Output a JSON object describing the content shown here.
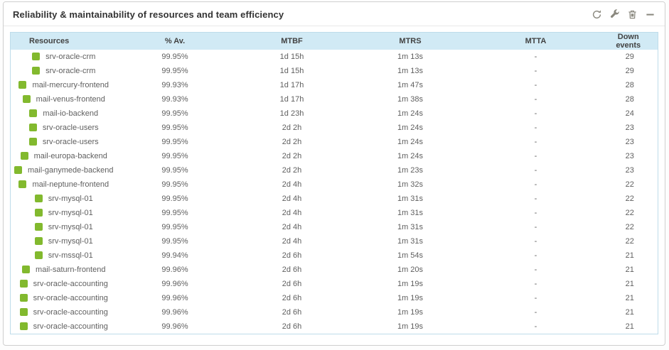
{
  "widget": {
    "title": "Reliability & maintainability of resources and team efficiency",
    "toolbar_icons": [
      "refresh",
      "wrench",
      "trash",
      "collapse"
    ]
  },
  "colors": {
    "status_ok": "#82B92E",
    "header_bg": "#d1eaf5",
    "table_border": "#bedcea",
    "icon_gray": "#8a887e"
  },
  "table": {
    "columns": [
      "Resources",
      "% Av.",
      "MTBF",
      "MTRS",
      "MTTA",
      "Down events"
    ],
    "rows": [
      {
        "resource": "srv-oracle-crm",
        "av": "99.95%",
        "mtbf": "1d 15h",
        "mtrs": "1m 13s",
        "mtta": "-",
        "down_events": "29"
      },
      {
        "resource": "srv-oracle-crm",
        "av": "99.95%",
        "mtbf": "1d 15h",
        "mtrs": "1m 13s",
        "mtta": "-",
        "down_events": "29"
      },
      {
        "resource": "mail-mercury-frontend",
        "av": "99.93%",
        "mtbf": "1d 17h",
        "mtrs": "1m 47s",
        "mtta": "-",
        "down_events": "28"
      },
      {
        "resource": "mail-venus-frontend",
        "av": "99.93%",
        "mtbf": "1d 17h",
        "mtrs": "1m 38s",
        "mtta": "-",
        "down_events": "28"
      },
      {
        "resource": "mail-io-backend",
        "av": "99.95%",
        "mtbf": "1d 23h",
        "mtrs": "1m 24s",
        "mtta": "-",
        "down_events": "24"
      },
      {
        "resource": "srv-oracle-users",
        "av": "99.95%",
        "mtbf": "2d 2h",
        "mtrs": "1m 24s",
        "mtta": "-",
        "down_events": "23"
      },
      {
        "resource": "srv-oracle-users",
        "av": "99.95%",
        "mtbf": "2d 2h",
        "mtrs": "1m 24s",
        "mtta": "-",
        "down_events": "23"
      },
      {
        "resource": "mail-europa-backend",
        "av": "99.95%",
        "mtbf": "2d 2h",
        "mtrs": "1m 24s",
        "mtta": "-",
        "down_events": "23"
      },
      {
        "resource": "mail-ganymede-backend",
        "av": "99.95%",
        "mtbf": "2d 2h",
        "mtrs": "1m 23s",
        "mtta": "-",
        "down_events": "23"
      },
      {
        "resource": "mail-neptune-frontend",
        "av": "99.95%",
        "mtbf": "2d 4h",
        "mtrs": "1m 32s",
        "mtta": "-",
        "down_events": "22"
      },
      {
        "resource": "srv-mysql-01",
        "av": "99.95%",
        "mtbf": "2d 4h",
        "mtrs": "1m 31s",
        "mtta": "-",
        "down_events": "22"
      },
      {
        "resource": "srv-mysql-01",
        "av": "99.95%",
        "mtbf": "2d 4h",
        "mtrs": "1m 31s",
        "mtta": "-",
        "down_events": "22"
      },
      {
        "resource": "srv-mysql-01",
        "av": "99.95%",
        "mtbf": "2d 4h",
        "mtrs": "1m 31s",
        "mtta": "-",
        "down_events": "22"
      },
      {
        "resource": "srv-mysql-01",
        "av": "99.95%",
        "mtbf": "2d 4h",
        "mtrs": "1m 31s",
        "mtta": "-",
        "down_events": "22"
      },
      {
        "resource": "srv-mssql-01",
        "av": "99.94%",
        "mtbf": "2d 6h",
        "mtrs": "1m 54s",
        "mtta": "-",
        "down_events": "21"
      },
      {
        "resource": "mail-saturn-frontend",
        "av": "99.96%",
        "mtbf": "2d 6h",
        "mtrs": "1m 20s",
        "mtta": "-",
        "down_events": "21"
      },
      {
        "resource": "srv-oracle-accounting",
        "av": "99.96%",
        "mtbf": "2d 6h",
        "mtrs": "1m 19s",
        "mtta": "-",
        "down_events": "21"
      },
      {
        "resource": "srv-oracle-accounting",
        "av": "99.96%",
        "mtbf": "2d 6h",
        "mtrs": "1m 19s",
        "mtta": "-",
        "down_events": "21"
      },
      {
        "resource": "srv-oracle-accounting",
        "av": "99.96%",
        "mtbf": "2d 6h",
        "mtrs": "1m 19s",
        "mtta": "-",
        "down_events": "21"
      },
      {
        "resource": "srv-oracle-accounting",
        "av": "99.96%",
        "mtbf": "2d 6h",
        "mtrs": "1m 19s",
        "mtta": "-",
        "down_events": "21"
      }
    ]
  }
}
